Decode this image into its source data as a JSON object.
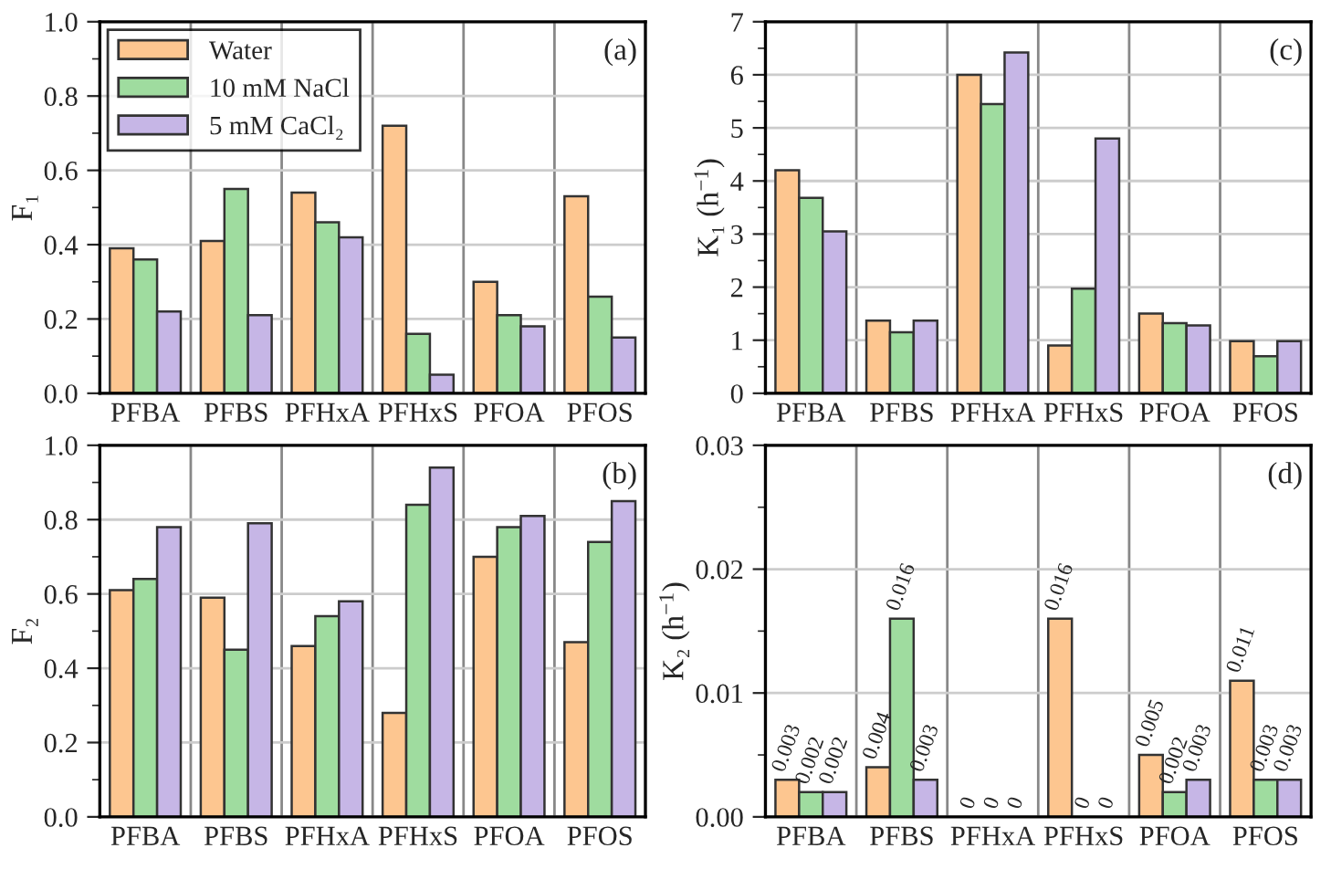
{
  "chart_data": [
    {
      "type": "bar",
      "ylabel": "F₁",
      "categories": [
        "PFBA",
        "PFBS",
        "PFHxA",
        "PFHxS",
        "PFOA",
        "PFOS"
      ],
      "ylim": [
        0,
        1.0
      ],
      "yticks": [
        {
          "value": 0,
          "label": "0.0"
        },
        0.2,
        0.4,
        0.6,
        0.8,
        {
          "value": 1.0,
          "label": "1.0"
        }
      ],
      "grid": true,
      "legend": "top left",
      "annotations": [
        "(a)"
      ],
      "series": [
        {
          "name": "Water",
          "color": "#fdc690",
          "values": [
            0.39,
            0.41,
            0.54,
            0.72,
            0.3,
            0.53
          ]
        },
        {
          "name": "10 mM NaCl",
          "color": "#9fdc9f",
          "values": [
            0.36,
            0.55,
            0.46,
            0.16,
            0.21,
            0.26
          ]
        },
        {
          "name": "5 mM CaCl₂",
          "color": "#c6b6e6",
          "values": [
            0.22,
            0.21,
            0.42,
            0.05,
            0.18,
            0.15
          ]
        }
      ]
    },
    {
      "type": "bar",
      "ylabel": "K₁ (h$^{−1}$)",
      "categories": [
        "PFBA",
        "PFBS",
        "PFHxA",
        "PFHxS",
        "PFOA",
        "PFOS"
      ],
      "ylim": [
        0,
        7
      ],
      "yticks": [
        0,
        1,
        2,
        3,
        4,
        5,
        6,
        7
      ],
      "grid": true,
      "annotations": [
        "(c)"
      ],
      "series": [
        {
          "color": "#fdc690",
          "values": [
            4.2,
            1.37,
            6.0,
            0.9,
            1.5,
            0.98
          ]
        },
        {
          "color": "#9fdc9f",
          "values": [
            3.68,
            1.15,
            5.45,
            1.97,
            1.32,
            0.7
          ]
        },
        {
          "color": "#c6b6e6",
          "values": [
            3.05,
            1.37,
            6.42,
            4.8,
            1.28,
            0.98
          ]
        }
      ]
    },
    {
      "type": "bar",
      "ylabel": "F₂",
      "categories": [
        "PFBA",
        "PFBS",
        "PFHxA",
        "PFHxS",
        "PFOA",
        "PFOS"
      ],
      "ylim": [
        0,
        1.0
      ],
      "yticks": [
        {
          "value": 0,
          "label": "0.0"
        },
        0.2,
        0.4,
        0.6,
        0.8,
        {
          "value": 1.0,
          "label": "1.0"
        }
      ],
      "grid": true,
      "annotations": [
        "(b)"
      ],
      "series": [
        {
          "color": "#fdc690",
          "values": [
            0.61,
            0.59,
            0.46,
            0.28,
            0.7,
            0.47
          ]
        },
        {
          "color": "#9fdc9f",
          "values": [
            0.64,
            0.45,
            0.54,
            0.84,
            0.78,
            0.74
          ]
        },
        {
          "color": "#c6b6e6",
          "values": [
            0.78,
            0.79,
            0.58,
            0.94,
            0.81,
            0.85
          ]
        }
      ]
    },
    {
      "type": "bar",
      "ylabel": "K₂ (h$^{−1}$)",
      "categories": [
        "PFBA",
        "PFBS",
        "PFHxA",
        "PFHxS",
        "PFOA",
        "PFOS"
      ],
      "ylim": [
        0,
        0.03
      ],
      "yticks": [
        {
          "value": 0,
          "label": "0.00"
        },
        {
          "value": 0.01,
          "label": "0.01"
        },
        {
          "value": 0.02,
          "label": "0.02"
        },
        {
          "value": 0.03,
          "label": "0.03"
        }
      ],
      "grid": true,
      "data_labels": true,
      "annotations": [
        "(d)"
      ],
      "series": [
        {
          "color": "#fdc690",
          "values": [
            0.003,
            0.004,
            0,
            0.016,
            0.005,
            0.011
          ]
        },
        {
          "color": "#9fdc9f",
          "values": [
            0.002,
            0.016,
            0,
            0,
            0.002,
            0.003
          ]
        },
        {
          "color": "#c6b6e6",
          "values": [
            0.002,
            0.003,
            0,
            0,
            0.003,
            0.003
          ]
        }
      ]
    }
  ]
}
